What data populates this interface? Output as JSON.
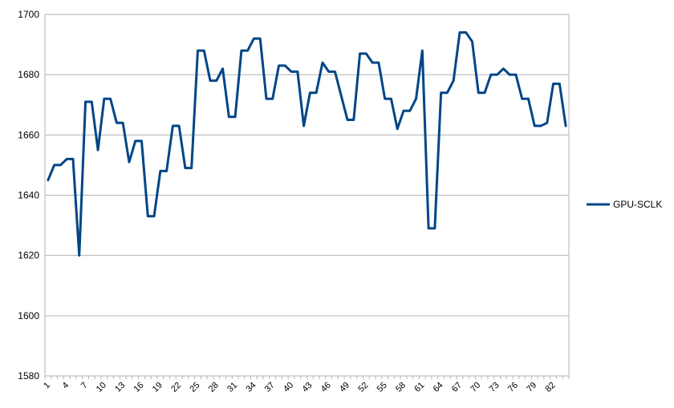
{
  "chart_data": {
    "type": "line",
    "title": "",
    "xlabel": "",
    "ylabel": "",
    "ylim": [
      1580,
      1700
    ],
    "y_ticks": [
      1580,
      1600,
      1620,
      1640,
      1660,
      1680,
      1700
    ],
    "x_tick_labels": [
      "1",
      "4",
      "7",
      "10",
      "13",
      "16",
      "19",
      "22",
      "25",
      "28",
      "31",
      "34",
      "37",
      "40",
      "43",
      "46",
      "49",
      "52",
      "55",
      "58",
      "61",
      "64",
      "67",
      "70",
      "73",
      "76",
      "79",
      "82"
    ],
    "x_label_step": 3,
    "grid": "horizontal",
    "legend_position": "right",
    "series": [
      {
        "name": "GPU-SCLK",
        "color": "#004586",
        "values": [
          1645,
          1650,
          1650,
          1652,
          1652,
          1620,
          1671,
          1671,
          1655,
          1672,
          1672,
          1664,
          1664,
          1651,
          1658,
          1658,
          1633,
          1633,
          1648,
          1648,
          1663,
          1663,
          1649,
          1649,
          1688,
          1688,
          1678,
          1678,
          1682,
          1666,
          1666,
          1688,
          1688,
          1692,
          1692,
          1672,
          1672,
          1683,
          1683,
          1681,
          1681,
          1663,
          1674,
          1674,
          1684,
          1681,
          1681,
          1673,
          1665,
          1665,
          1687,
          1687,
          1684,
          1684,
          1672,
          1672,
          1662,
          1668,
          1668,
          1672,
          1688,
          1629,
          1629,
          1674,
          1674,
          1678,
          1694,
          1694,
          1691,
          1674,
          1674,
          1680,
          1680,
          1682,
          1680,
          1680,
          1672,
          1672,
          1663,
          1663,
          1664,
          1677,
          1677,
          1663
        ]
      }
    ]
  }
}
